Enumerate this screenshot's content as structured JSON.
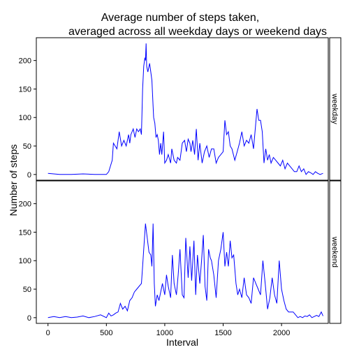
{
  "chart_data": {
    "type": "line",
    "title_lines": [
      "Average number of steps taken,",
      "averaged across all weekday days or weekend days"
    ],
    "xlabel": "Interval",
    "ylabel": "Number of steps",
    "xlim": [
      -100,
      2400
    ],
    "ylim": [
      -10,
      240
    ],
    "xticks": [
      0,
      500,
      1000,
      1500,
      2000
    ],
    "yticks": [
      0,
      50,
      100,
      150,
      200
    ],
    "line_color": "#0000ff",
    "panels": [
      {
        "label": "weekday",
        "x": [
          0,
          100,
          200,
          300,
          400,
          500,
          520,
          550,
          560,
          575,
          590,
          610,
          630,
          650,
          670,
          690,
          700,
          710,
          730,
          745,
          760,
          775,
          790,
          800,
          810,
          820,
          830,
          835,
          840,
          845,
          855,
          870,
          880,
          890,
          900,
          905,
          915,
          925,
          935,
          945,
          955,
          965,
          975,
          990,
          1000,
          1015,
          1030,
          1050,
          1060,
          1080,
          1100,
          1110,
          1130,
          1150,
          1170,
          1185,
          1200,
          1215,
          1225,
          1240,
          1255,
          1270,
          1285,
          1300,
          1320,
          1340,
          1360,
          1380,
          1400,
          1420,
          1440,
          1460,
          1480,
          1500,
          1515,
          1530,
          1545,
          1560,
          1575,
          1600,
          1620,
          1640,
          1660,
          1680,
          1700,
          1720,
          1740,
          1760,
          1775,
          1790,
          1805,
          1820,
          1835,
          1850,
          1865,
          1880,
          1895,
          1910,
          1930,
          1950,
          1970,
          1990,
          2010,
          2030,
          2050,
          2070,
          2090,
          2110,
          2130,
          2150,
          2170,
          2190,
          2210,
          2230,
          2250,
          2270,
          2290,
          2310,
          2330,
          2355
        ],
        "y": [
          2,
          0,
          0,
          1,
          0,
          0,
          5,
          25,
          55,
          50,
          45,
          75,
          50,
          60,
          50,
          70,
          55,
          70,
          80,
          65,
          80,
          75,
          80,
          70,
          150,
          190,
          205,
          200,
          230,
          190,
          180,
          195,
          180,
          165,
          120,
          100,
          90,
          65,
          70,
          60,
          35,
          55,
          35,
          75,
          20,
          25,
          35,
          20,
          45,
          25,
          20,
          30,
          25,
          55,
          60,
          40,
          62,
          55,
          40,
          60,
          35,
          80,
          25,
          55,
          20,
          40,
          50,
          30,
          45,
          45,
          20,
          30,
          35,
          40,
          95,
          70,
          75,
          50,
          45,
          25,
          40,
          55,
          75,
          50,
          60,
          55,
          70,
          45,
          80,
          115,
          95,
          95,
          75,
          20,
          45,
          25,
          35,
          20,
          30,
          25,
          20,
          15,
          25,
          10,
          20,
          15,
          10,
          5,
          5,
          15,
          5,
          10,
          0,
          5,
          3,
          0,
          5,
          2,
          0,
          2
        ]
      },
      {
        "label": "weekend",
        "x": [
          0,
          50,
          100,
          150,
          200,
          250,
          300,
          350,
          400,
          450,
          500,
          520,
          540,
          560,
          580,
          600,
          620,
          640,
          660,
          680,
          700,
          720,
          740,
          760,
          780,
          800,
          810,
          820,
          835,
          850,
          865,
          880,
          890,
          900,
          910,
          920,
          935,
          950,
          965,
          980,
          1000,
          1015,
          1030,
          1050,
          1065,
          1080,
          1100,
          1115,
          1130,
          1150,
          1165,
          1180,
          1200,
          1215,
          1230,
          1250,
          1265,
          1280,
          1300,
          1315,
          1330,
          1345,
          1360,
          1375,
          1390,
          1400,
          1420,
          1440,
          1460,
          1480,
          1500,
          1515,
          1530,
          1545,
          1560,
          1575,
          1590,
          1610,
          1625,
          1640,
          1660,
          1680,
          1700,
          1720,
          1740,
          1760,
          1780,
          1800,
          1820,
          1840,
          1860,
          1880,
          1900,
          1920,
          1940,
          1960,
          1980,
          2000,
          2020,
          2040,
          2060,
          2080,
          2100,
          2120,
          2140,
          2160,
          2180,
          2200,
          2220,
          2240,
          2260,
          2280,
          2300,
          2320,
          2340,
          2355
        ],
        "y": [
          0,
          2,
          0,
          2,
          0,
          1,
          3,
          0,
          2,
          5,
          0,
          8,
          3,
          5,
          8,
          10,
          25,
          15,
          20,
          12,
          30,
          35,
          45,
          50,
          55,
          60,
          90,
          120,
          165,
          140,
          115,
          110,
          90,
          165,
          60,
          20,
          40,
          30,
          45,
          60,
          40,
          75,
          55,
          35,
          110,
          60,
          40,
          75,
          120,
          40,
          35,
          140,
          70,
          125,
          65,
          135,
          40,
          110,
          60,
          100,
          145,
          55,
          30,
          120,
          105,
          100,
          75,
          35,
          100,
          120,
          150,
          90,
          115,
          90,
          135,
          105,
          110,
          60,
          40,
          50,
          35,
          70,
          40,
          35,
          25,
          70,
          60,
          50,
          40,
          100,
          60,
          15,
          35,
          70,
          40,
          25,
          100,
          50,
          30,
          15,
          10,
          10,
          10,
          5,
          0,
          2,
          0,
          3,
          2,
          5,
          0,
          2,
          4,
          2,
          10,
          3
        ]
      }
    ]
  }
}
